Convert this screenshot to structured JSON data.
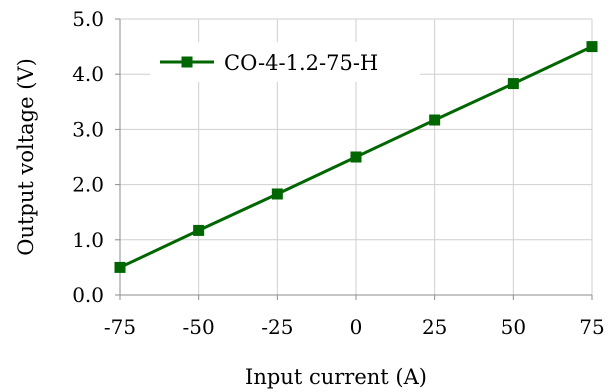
{
  "chart_data": {
    "type": "line",
    "title": "",
    "xlabel": "Input current (A)",
    "ylabel": "Output voltage (V)",
    "x": [
      -75,
      -50,
      -25,
      0,
      25,
      50,
      75
    ],
    "series": [
      {
        "name": "CO-4-1.2-75-H",
        "values": [
          0.5,
          1.17,
          1.83,
          2.5,
          3.17,
          3.83,
          4.5
        ],
        "color": "#006600",
        "marker": "square"
      }
    ],
    "xlim": [
      -75,
      75
    ],
    "ylim": [
      0.0,
      5.0
    ],
    "xticks": [
      -75,
      -50,
      -25,
      0,
      25,
      50,
      75
    ],
    "xtick_labels": [
      "-75",
      "-50",
      "-25",
      "0",
      "25",
      "50",
      "75"
    ],
    "yticks": [
      0.0,
      1.0,
      2.0,
      3.0,
      4.0,
      5.0
    ],
    "ytick_labels": [
      "0.0",
      "1.0",
      "2.0",
      "3.0",
      "4.0",
      "5.0"
    ],
    "grid": true,
    "legend_position": "top-left"
  }
}
